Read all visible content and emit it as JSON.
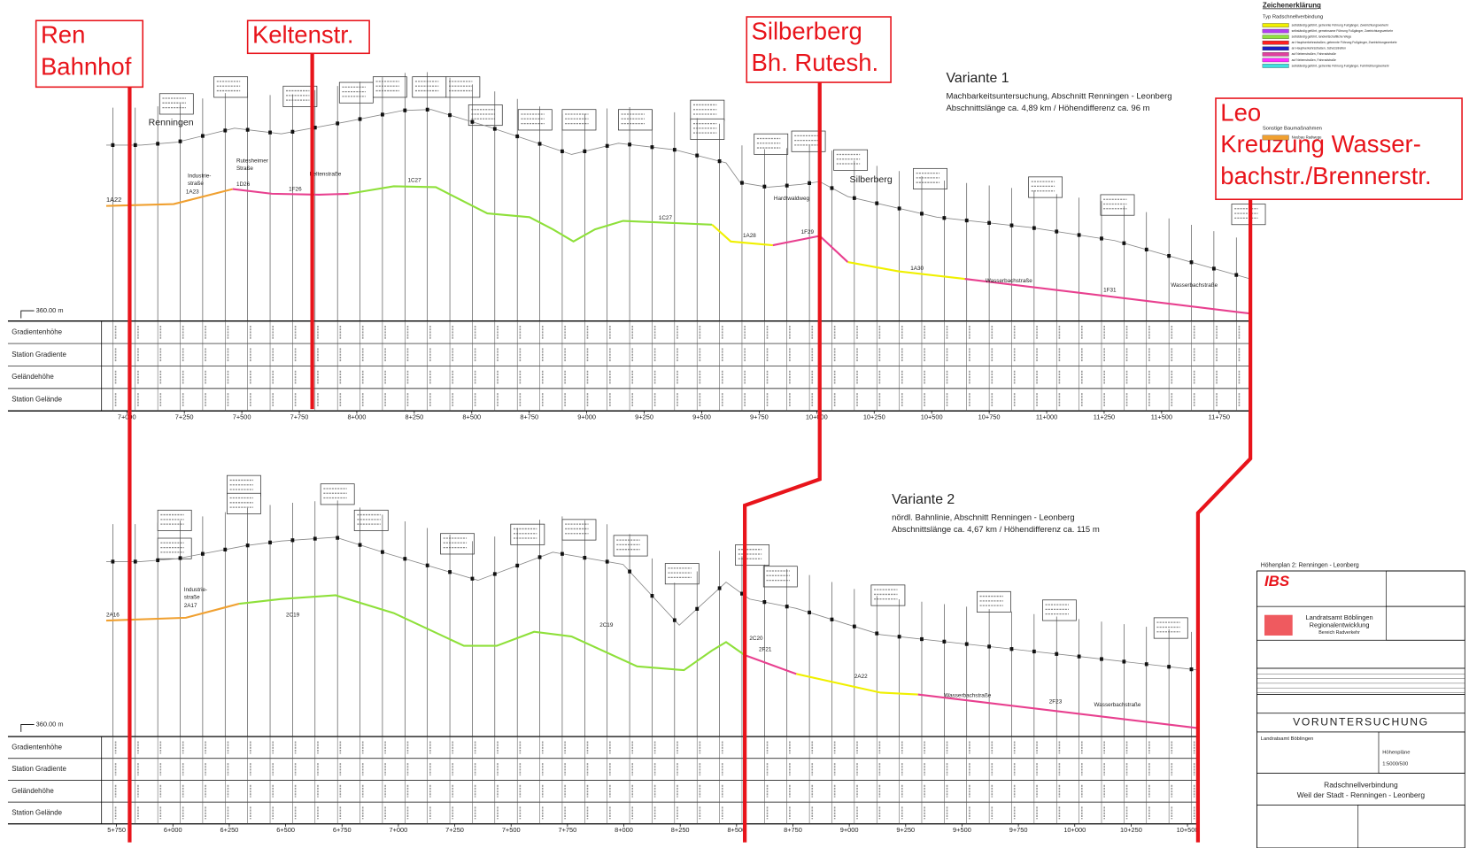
{
  "annotations": [
    {
      "lines": [
        "Ren",
        "Bahnhof"
      ]
    },
    {
      "lines": [
        "Keltenstr."
      ]
    },
    {
      "lines": [
        "Silberberg",
        "Bh. Rutesh."
      ]
    },
    {
      "lines": [
        "Leo",
        "Kreuzung Wasser-",
        "bachstr./Brennerstr."
      ]
    }
  ],
  "legend": {
    "title": "Zeichenerklärung",
    "subtitle": "Typ Radschnellverbindung",
    "items": [
      {
        "color": "#f0f000",
        "text": "selbständig geführt, getrennte Führung Fußgänger, Zweirichtungsverkehr"
      },
      {
        "color": "#b040f0",
        "text": "selbständig geführt, gemeinsame Führung Fußgänger, Zweirichtungsverkehr"
      },
      {
        "color": "#90e040",
        "text": "selbständig geführt, landwirtschaftliche Wege"
      },
      {
        "color": "#ff2020",
        "text": "an Hauptverkehrsstraßen, getrennte Führung Fußgänger, Zweirichtungsverkehr"
      },
      {
        "color": "#2020c0",
        "text": "an Hauptverkehrsstraßen, Schutzstreifen"
      },
      {
        "color": "#e040a0",
        "text": "auf Nebenstraßen, Fahrradstraße"
      },
      {
        "color": "#ff30ff",
        "text": "auf Nebenstraßen, Fahrradstraße"
      },
      {
        "color": "#40e0e0",
        "text": "selbständig geführt, getrennte Führung Fußgänger, Fahrtrichtungsverkehr"
      }
    ],
    "other_title": "Sonstige Baumaßnahmen",
    "other_items": [
      {
        "color": "#f0a030",
        "text": "Neubau Radwege"
      }
    ]
  },
  "variants": [
    {
      "title": "Variante 1",
      "subtitle": [
        "Machbarkeitsuntersuchung, Abschnitt Renningen - Leonberg",
        "Abschnittslänge ca. 4,89 km / Höhendifferenz ca. 96 m"
      ],
      "datum": "360.00 m",
      "row_labels": [
        "Gradientenhöhe",
        "Station Gradiente",
        "Geländehöhe",
        "Station Gelände"
      ],
      "stations": [
        "7+000",
        "7+250",
        "7+500",
        "7+750",
        "8+000",
        "8+250",
        "8+500",
        "8+750",
        "9+000",
        "9+250",
        "9+500",
        "9+750",
        "10+000",
        "10+250",
        "10+500",
        "10+750",
        "11+000",
        "11+250",
        "11+500",
        "11+750"
      ],
      "labels": [
        "1A22",
        "Renningen",
        "Industrie-",
        "straße",
        "1A23",
        "Rutesheimer",
        "Straße",
        "1D26",
        "1F26",
        "Keltenstraße",
        "1C27",
        "1C27",
        "1A28",
        "Hardtwaldweg",
        "1F29",
        "Silberberg",
        "1A30",
        "Wasserbachstraße",
        "1F31",
        "Wasserbachstraße"
      ]
    },
    {
      "title": "Variante 2",
      "subtitle": [
        "nördl. Bahnlinie, Abschnitt Renningen - Leonberg",
        "Abschnittslänge ca. 4,67 km / Höhendifferenz ca. 115 m"
      ],
      "datum": "360.00 m",
      "row_labels": [
        "Gradientenhöhe",
        "Station Gradiente",
        "Geländehöhe",
        "Station Gelände"
      ],
      "stations": [
        "5+750",
        "6+000",
        "6+250",
        "6+500",
        "6+750",
        "7+000",
        "7+250",
        "7+500",
        "7+750",
        "8+000",
        "8+250",
        "8+500",
        "8+750",
        "9+000",
        "9+250",
        "9+500",
        "9+750",
        "10+000",
        "10+250",
        "10+500"
      ],
      "labels": [
        "2A16",
        "Industrie-",
        "straße",
        "2A17",
        "2C19",
        "2C19",
        "2C20",
        "2F21",
        "2A22",
        "Wasserbachstraße",
        "2F23",
        "Wasserbachstraße"
      ]
    }
  ],
  "title_block": {
    "plan": "Höhenplan 2: Renningen - Leonberg",
    "logo": "IBS",
    "client": [
      "Landratsamt Böblingen",
      "Regionalentwicklung",
      "Bereich Radverkehr"
    ],
    "phase": "VORUNTERSUCHUNG",
    "office": "Landratsamt Böblingen",
    "sheet": "Höhenpläne",
    "scale": "1:5000/500",
    "project": [
      "Radschnellverbindung",
      "Weil der Stadt - Renningen - Leonberg"
    ]
  }
}
